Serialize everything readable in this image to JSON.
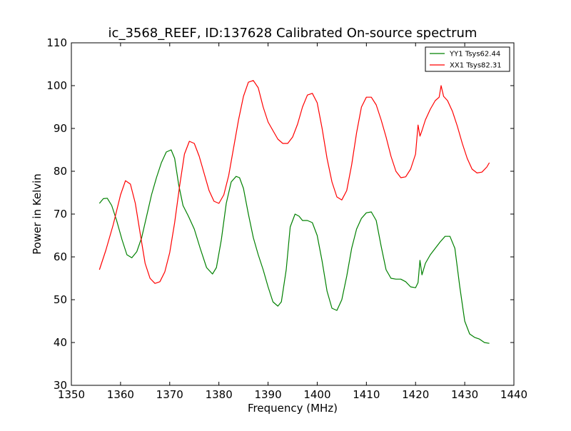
{
  "chart_data": {
    "type": "line",
    "title": "ic_3568_REEF, ID:137628 Calibrated On-source spectrum",
    "xlabel": "Frequency (MHz)",
    "ylabel": "Power in Kelvin",
    "xlim": [
      1350,
      1440
    ],
    "ylim": [
      30,
      110
    ],
    "xticks": [
      1350,
      1360,
      1370,
      1380,
      1390,
      1400,
      1410,
      1420,
      1430,
      1440
    ],
    "yticks": [
      30,
      40,
      50,
      60,
      70,
      80,
      90,
      100,
      110
    ],
    "grid": false,
    "legend_position": "top-right",
    "series": [
      {
        "name": "YY1 Tsys62.44",
        "color": "#008000",
        "x": [
          1355.7,
          1356.5,
          1357.3,
          1358.2,
          1359.2,
          1360.3,
          1361.3,
          1362.3,
          1363.3,
          1364.3,
          1365.3,
          1366.3,
          1367.3,
          1368.3,
          1369.3,
          1370.3,
          1371.0,
          1371.8,
          1372.7,
          1373.8,
          1375.0,
          1376.2,
          1377.5,
          1378.7,
          1379.5,
          1380.5,
          1381.5,
          1382.5,
          1383.5,
          1384.2,
          1385.0,
          1386.0,
          1387.0,
          1388.0,
          1389.0,
          1390.0,
          1391.0,
          1392.0,
          1392.7,
          1393.7,
          1394.5,
          1395.5,
          1396.3,
          1397.0,
          1398.0,
          1399.0,
          1400.0,
          1401.0,
          1402.0,
          1403.0,
          1404.0,
          1405.0,
          1406.0,
          1407.0,
          1408.0,
          1409.0,
          1410.0,
          1411.0,
          1412.0,
          1413.0,
          1414.0,
          1415.0,
          1416.0,
          1417.0,
          1418.0,
          1419.0,
          1420.0,
          1420.5,
          1420.9,
          1421.3,
          1422.0,
          1423.0,
          1424.0,
          1425.0,
          1426.0,
          1427.0,
          1428.0,
          1429.0,
          1430.0,
          1431.0,
          1432.0,
          1433.0,
          1434.0,
          1435.0
        ],
        "values": [
          72.5,
          73.6,
          73.7,
          72.0,
          68.5,
          64.0,
          60.5,
          59.8,
          61.2,
          64.5,
          69.5,
          74.5,
          78.5,
          82.0,
          84.5,
          85.0,
          83.0,
          77.0,
          72.0,
          69.5,
          66.5,
          62.0,
          57.5,
          56.0,
          57.5,
          64.0,
          72.5,
          77.5,
          78.8,
          78.5,
          76.0,
          70.0,
          64.5,
          60.5,
          57.0,
          53.0,
          49.5,
          48.5,
          49.5,
          57.0,
          67.0,
          70.0,
          69.5,
          68.5,
          68.5,
          68.0,
          65.0,
          59.0,
          52.0,
          48.0,
          47.5,
          50.0,
          55.5,
          62.0,
          66.5,
          69.0,
          70.3,
          70.5,
          68.5,
          62.5,
          57.0,
          55.0,
          54.8,
          54.8,
          54.2,
          53.0,
          52.8,
          54.0,
          59.2,
          55.8,
          58.5,
          60.5,
          62.0,
          63.5,
          64.8,
          64.8,
          62.0,
          53.0,
          45.0,
          42.0,
          41.2,
          40.8,
          40.0,
          39.8
        ]
      },
      {
        "name": "XX1 Tsys82.31",
        "color": "#ff0000",
        "x": [
          1355.7,
          1357.0,
          1358.5,
          1360.0,
          1361.0,
          1362.0,
          1363.0,
          1364.0,
          1365.0,
          1366.0,
          1367.0,
          1368.0,
          1369.0,
          1370.0,
          1371.0,
          1372.0,
          1373.0,
          1374.0,
          1375.0,
          1376.0,
          1377.0,
          1378.0,
          1379.0,
          1380.0,
          1381.0,
          1382.0,
          1383.0,
          1384.0,
          1385.0,
          1386.0,
          1387.0,
          1388.0,
          1389.0,
          1390.0,
          1391.0,
          1392.0,
          1393.0,
          1394.0,
          1395.0,
          1396.0,
          1397.0,
          1398.0,
          1399.0,
          1400.0,
          1401.0,
          1402.0,
          1403.0,
          1404.0,
          1405.0,
          1406.0,
          1407.0,
          1408.0,
          1409.0,
          1410.0,
          1411.0,
          1412.0,
          1413.0,
          1414.0,
          1415.0,
          1416.0,
          1417.0,
          1418.0,
          1419.0,
          1420.0,
          1420.5,
          1420.9,
          1421.3,
          1422.0,
          1423.0,
          1424.0,
          1424.8,
          1425.2,
          1425.7,
          1426.5,
          1427.5,
          1428.5,
          1429.5,
          1430.5,
          1431.5,
          1432.5,
          1433.5,
          1434.5,
          1435.0
        ],
        "values": [
          57.0,
          61.5,
          67.5,
          74.5,
          77.8,
          77.0,
          72.5,
          65.5,
          58.5,
          55.0,
          53.8,
          54.2,
          56.5,
          61.0,
          68.0,
          76.5,
          84.0,
          87.0,
          86.5,
          83.5,
          79.5,
          75.5,
          73.0,
          72.5,
          74.5,
          79.0,
          85.5,
          92.0,
          97.5,
          100.8,
          101.2,
          99.5,
          95.0,
          91.5,
          89.5,
          87.5,
          86.5,
          86.5,
          88.0,
          91.0,
          95.0,
          97.8,
          98.2,
          96.0,
          90.0,
          83.0,
          77.5,
          74.0,
          73.3,
          75.5,
          81.5,
          89.0,
          95.0,
          97.3,
          97.3,
          95.5,
          92.0,
          88.0,
          83.5,
          80.0,
          78.5,
          78.7,
          80.5,
          84.0,
          90.8,
          88.2,
          89.5,
          92.0,
          94.5,
          96.5,
          97.3,
          100.0,
          97.5,
          96.5,
          94.0,
          90.5,
          86.5,
          83.0,
          80.5,
          79.6,
          79.8,
          81.0,
          82.0
        ]
      }
    ]
  }
}
